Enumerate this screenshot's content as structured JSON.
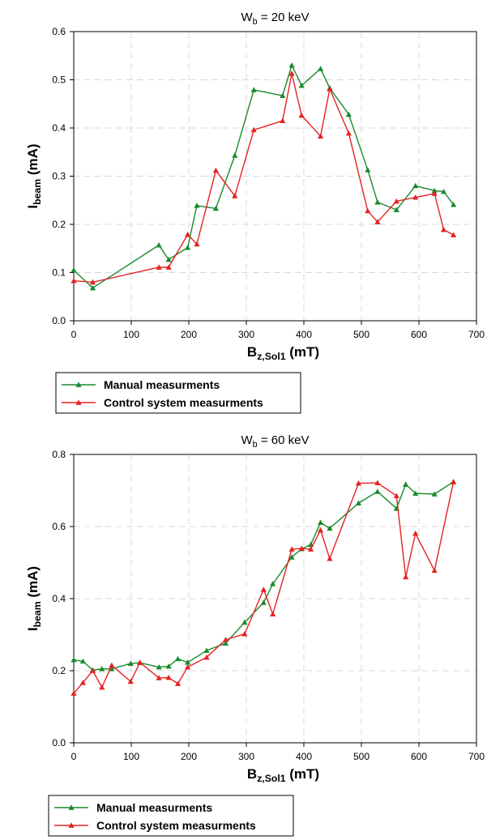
{
  "chart_data": [
    {
      "type": "line",
      "title_main": "W",
      "title_sub": "b",
      "title_rest": "= 20 keV",
      "xlabel_main": "B",
      "xlabel_sub": "z,Sol1",
      "xlabel_rest": " (mT)",
      "ylabel_main": "I",
      "ylabel_sub": "beam",
      "ylabel_rest": "  (mA)",
      "xlim": [
        0,
        700
      ],
      "ylim": [
        0,
        0.6
      ],
      "xticks": [
        "0",
        "100",
        "200",
        "300",
        "400",
        "500",
        "600",
        "700"
      ],
      "yticks": [
        "0.0",
        "0.1",
        "0.2",
        "0.3",
        "0.4",
        "0.5",
        "0.6"
      ],
      "grid": true,
      "legend_position": "below",
      "series": [
        {
          "name": "Manual measurments",
          "color": "#1a8a2e",
          "x": [
            0,
            33,
            148,
            165,
            198,
            214,
            247,
            280,
            313,
            363,
            379,
            396,
            429,
            445,
            478,
            511,
            528,
            561,
            594,
            627,
            643,
            660
          ],
          "y": [
            0.105,
            0.068,
            0.157,
            0.127,
            0.152,
            0.239,
            0.233,
            0.343,
            0.479,
            0.467,
            0.53,
            0.488,
            0.523,
            0.483,
            0.428,
            0.313,
            0.246,
            0.23,
            0.28,
            0.27,
            0.268,
            0.241
          ]
        },
        {
          "name": "Control system measurments",
          "color": "#e52222",
          "x": [
            0,
            33,
            148,
            165,
            198,
            214,
            247,
            280,
            313,
            363,
            379,
            396,
            429,
            445,
            478,
            511,
            528,
            561,
            594,
            627,
            643,
            660
          ],
          "y": [
            0.083,
            0.08,
            0.111,
            0.111,
            0.179,
            0.159,
            0.312,
            0.259,
            0.396,
            0.415,
            0.513,
            0.426,
            0.383,
            0.481,
            0.389,
            0.228,
            0.205,
            0.248,
            0.256,
            0.264,
            0.189,
            0.178
          ]
        }
      ]
    },
    {
      "type": "line",
      "title_main": "W",
      "title_sub": "b",
      "title_rest": " = 60 keV",
      "xlabel_main": "B",
      "xlabel_sub": "z,Sol1",
      "xlabel_rest": " (mT)",
      "ylabel_main": "I",
      "ylabel_sub": "beam",
      "ylabel_rest": "  (mA)",
      "xlim": [
        0,
        700
      ],
      "ylim": [
        0,
        0.8
      ],
      "xticks": [
        "0",
        "100",
        "200",
        "300",
        "400",
        "500",
        "600",
        "700"
      ],
      "yticks": [
        "0.0",
        "0.2",
        "0.4",
        "0.6",
        "0.8"
      ],
      "grid": true,
      "legend_position": "below",
      "series": [
        {
          "name": "Manual measurments",
          "color": "#1a8a2e",
          "x": [
            0,
            16,
            33,
            49,
            66,
            99,
            115,
            148,
            165,
            181,
            198,
            231,
            264,
            297,
            330,
            346,
            379,
            396,
            412,
            429,
            445,
            495,
            528,
            561,
            577,
            594,
            627,
            660
          ],
          "y": [
            0.23,
            0.226,
            0.202,
            0.205,
            0.205,
            0.22,
            0.222,
            0.21,
            0.212,
            0.233,
            0.223,
            0.256,
            0.276,
            0.334,
            0.389,
            0.441,
            0.515,
            0.538,
            0.55,
            0.611,
            0.595,
            0.665,
            0.697,
            0.65,
            0.717,
            0.692,
            0.69,
            0.724
          ]
        },
        {
          "name": "Control system measurments",
          "color": "#e52222",
          "x": [
            0,
            16,
            33,
            49,
            66,
            99,
            115,
            148,
            165,
            181,
            198,
            231,
            264,
            297,
            330,
            346,
            379,
            396,
            412,
            429,
            445,
            495,
            528,
            561,
            577,
            594,
            627,
            660
          ],
          "y": [
            0.137,
            0.167,
            0.2,
            0.154,
            0.215,
            0.17,
            0.223,
            0.18,
            0.181,
            0.164,
            0.21,
            0.237,
            0.286,
            0.302,
            0.425,
            0.357,
            0.537,
            0.539,
            0.537,
            0.59,
            0.511,
            0.72,
            0.721,
            0.685,
            0.46,
            0.581,
            0.478,
            0.724
          ]
        }
      ]
    }
  ]
}
